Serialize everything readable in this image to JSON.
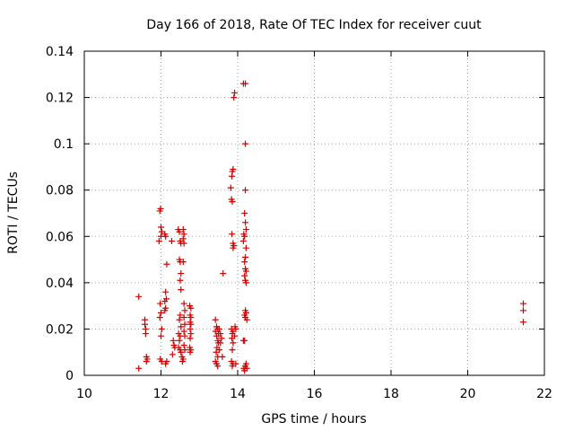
{
  "chart_data": {
    "type": "scatter",
    "title": "Day 166 of 2018, Rate Of TEC Index for receiver cuut",
    "xlabel": "GPS time / hours",
    "ylabel": "ROTI / TECUs",
    "xlim": [
      10,
      22
    ],
    "ylim": [
      0,
      0.14
    ],
    "x_ticks": [
      10,
      12,
      14,
      16,
      18,
      20,
      22
    ],
    "x_tick_labels": [
      "10",
      "12",
      "14",
      "16",
      "18",
      "20",
      "22"
    ],
    "y_ticks": [
      0,
      0.02,
      0.04,
      0.06,
      0.08,
      0.1,
      0.12,
      0.14
    ],
    "y_tick_labels": [
      "0",
      "0.02",
      "0.04",
      "0.06",
      "0.08",
      "0.1",
      "0.12",
      "0.14"
    ],
    "grid": true,
    "marker": "+",
    "color": "#d40000",
    "points": [
      [
        11.42,
        0.034
      ],
      [
        11.42,
        0.003
      ],
      [
        11.58,
        0.024
      ],
      [
        11.58,
        0.022
      ],
      [
        11.6,
        0.02
      ],
      [
        11.6,
        0.018
      ],
      [
        11.62,
        0.008
      ],
      [
        11.62,
        0.006
      ],
      [
        11.64,
        0.007
      ],
      [
        11.95,
        0.058
      ],
      [
        11.97,
        0.071
      ],
      [
        11.99,
        0.072
      ],
      [
        12.0,
        0.064
      ],
      [
        12.02,
        0.062
      ],
      [
        12.0,
        0.06
      ],
      [
        11.98,
        0.031
      ],
      [
        12.0,
        0.027
      ],
      [
        11.97,
        0.025
      ],
      [
        12.02,
        0.02
      ],
      [
        12.0,
        0.017
      ],
      [
        11.98,
        0.007
      ],
      [
        12.02,
        0.006
      ],
      [
        12.1,
        0.061
      ],
      [
        12.12,
        0.06
      ],
      [
        12.15,
        0.048
      ],
      [
        12.12,
        0.036
      ],
      [
        12.14,
        0.033
      ],
      [
        12.1,
        0.032
      ],
      [
        12.1,
        0.028
      ],
      [
        12.12,
        0.029
      ],
      [
        12.15,
        0.006
      ],
      [
        12.12,
        0.005
      ],
      [
        12.28,
        0.058
      ],
      [
        12.32,
        0.015
      ],
      [
        12.34,
        0.013
      ],
      [
        12.36,
        0.012
      ],
      [
        12.3,
        0.009
      ],
      [
        12.45,
        0.063
      ],
      [
        12.48,
        0.062
      ],
      [
        12.5,
        0.058
      ],
      [
        12.52,
        0.057
      ],
      [
        12.48,
        0.05
      ],
      [
        12.5,
        0.049
      ],
      [
        12.52,
        0.044
      ],
      [
        12.5,
        0.041
      ],
      [
        12.52,
        0.037
      ],
      [
        12.5,
        0.026
      ],
      [
        12.48,
        0.024
      ],
      [
        12.52,
        0.021
      ],
      [
        12.46,
        0.018
      ],
      [
        12.5,
        0.017
      ],
      [
        12.48,
        0.015
      ],
      [
        12.46,
        0.012
      ],
      [
        12.5,
        0.011
      ],
      [
        12.52,
        0.01
      ],
      [
        12.55,
        0.008
      ],
      [
        12.58,
        0.007
      ],
      [
        12.56,
        0.006
      ],
      [
        12.58,
        0.063
      ],
      [
        12.6,
        0.061
      ],
      [
        12.58,
        0.059
      ],
      [
        12.6,
        0.057
      ],
      [
        12.58,
        0.049
      ],
      [
        12.6,
        0.031
      ],
      [
        12.62,
        0.028
      ],
      [
        12.6,
        0.025
      ],
      [
        12.62,
        0.022
      ],
      [
        12.6,
        0.019
      ],
      [
        12.62,
        0.017
      ],
      [
        12.6,
        0.013
      ],
      [
        12.62,
        0.011
      ],
      [
        12.75,
        0.03
      ],
      [
        12.78,
        0.029
      ],
      [
        12.76,
        0.026
      ],
      [
        12.78,
        0.025
      ],
      [
        12.76,
        0.023
      ],
      [
        12.78,
        0.022
      ],
      [
        12.76,
        0.02
      ],
      [
        12.78,
        0.018
      ],
      [
        12.76,
        0.016
      ],
      [
        12.75,
        0.012
      ],
      [
        12.78,
        0.011
      ],
      [
        12.76,
        0.01
      ],
      [
        13.42,
        0.024
      ],
      [
        13.45,
        0.021
      ],
      [
        13.48,
        0.02
      ],
      [
        13.42,
        0.019
      ],
      [
        13.5,
        0.018
      ],
      [
        13.45,
        0.017
      ],
      [
        13.48,
        0.015
      ],
      [
        13.5,
        0.014
      ],
      [
        13.46,
        0.012
      ],
      [
        13.44,
        0.01
      ],
      [
        13.48,
        0.008
      ],
      [
        13.42,
        0.006
      ],
      [
        13.45,
        0.005
      ],
      [
        13.48,
        0.004
      ],
      [
        13.52,
        0.02
      ],
      [
        13.55,
        0.018
      ],
      [
        13.58,
        0.016
      ],
      [
        13.55,
        0.014
      ],
      [
        13.52,
        0.011
      ],
      [
        13.6,
        0.008
      ],
      [
        13.62,
        0.044
      ],
      [
        13.82,
        0.081
      ],
      [
        13.85,
        0.086
      ],
      [
        13.86,
        0.088
      ],
      [
        13.88,
        0.089
      ],
      [
        13.84,
        0.076
      ],
      [
        13.86,
        0.075
      ],
      [
        13.85,
        0.061
      ],
      [
        13.88,
        0.057
      ],
      [
        13.9,
        0.056
      ],
      [
        13.88,
        0.055
      ],
      [
        13.84,
        0.02
      ],
      [
        13.88,
        0.019
      ],
      [
        13.86,
        0.018
      ],
      [
        13.85,
        0.016
      ],
      [
        13.88,
        0.014
      ],
      [
        13.86,
        0.011
      ],
      [
        13.84,
        0.006
      ],
      [
        13.88,
        0.005
      ],
      [
        13.86,
        0.004
      ],
      [
        13.92,
        0.122
      ],
      [
        13.9,
        0.12
      ],
      [
        13.93,
        0.021
      ],
      [
        13.95,
        0.02
      ],
      [
        13.92,
        0.017
      ],
      [
        13.95,
        0.005
      ],
      [
        14.15,
        0.126
      ],
      [
        14.2,
        0.126
      ],
      [
        14.2,
        0.1
      ],
      [
        14.2,
        0.08
      ],
      [
        14.18,
        0.07
      ],
      [
        14.2,
        0.066
      ],
      [
        14.22,
        0.063
      ],
      [
        14.16,
        0.061
      ],
      [
        14.18,
        0.06
      ],
      [
        14.15,
        0.058
      ],
      [
        14.22,
        0.055
      ],
      [
        14.2,
        0.051
      ],
      [
        14.18,
        0.049
      ],
      [
        14.2,
        0.046
      ],
      [
        14.22,
        0.045
      ],
      [
        14.18,
        0.043
      ],
      [
        14.2,
        0.041
      ],
      [
        14.22,
        0.04
      ],
      [
        14.2,
        0.028
      ],
      [
        14.22,
        0.027
      ],
      [
        14.18,
        0.026
      ],
      [
        14.2,
        0.025
      ],
      [
        14.24,
        0.024
      ],
      [
        14.18,
        0.015
      ],
      [
        14.15,
        0.015
      ],
      [
        14.22,
        0.005
      ],
      [
        14.2,
        0.004
      ],
      [
        14.24,
        0.003
      ],
      [
        14.18,
        0.002
      ],
      [
        14.16,
        0.003
      ],
      [
        14.2,
        0.004
      ],
      [
        21.45,
        0.031
      ],
      [
        21.45,
        0.028
      ],
      [
        21.45,
        0.023
      ]
    ]
  }
}
